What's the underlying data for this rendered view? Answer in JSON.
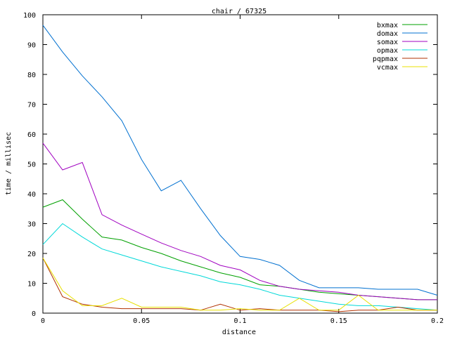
{
  "chart_data": {
    "type": "line",
    "title": "chair / 67325",
    "xlabel": "distance",
    "ylabel": "time / millisec",
    "xlim": [
      0,
      0.2
    ],
    "ylim": [
      0,
      100
    ],
    "xticks": [
      0,
      0.05,
      0.1,
      0.15,
      0.2
    ],
    "xtick_labels": [
      "0",
      "0.05",
      "0.1",
      "0.15",
      "0.2"
    ],
    "yticks": [
      0,
      10,
      20,
      30,
      40,
      50,
      60,
      70,
      80,
      90,
      100
    ],
    "ytick_labels": [
      "0",
      "10",
      "20",
      "30",
      "40",
      "50",
      "60",
      "70",
      "80",
      "90",
      "100"
    ],
    "grid": false,
    "legend": "top-right",
    "x": [
      0,
      0.01,
      0.02,
      0.03,
      0.04,
      0.05,
      0.06,
      0.07,
      0.08,
      0.09,
      0.1,
      0.11,
      0.12,
      0.13,
      0.14,
      0.15,
      0.16,
      0.17,
      0.18,
      0.19,
      0.2
    ],
    "series": [
      {
        "name": "bxmax",
        "color": "#00a000",
        "values": [
          35.5,
          38,
          31.5,
          25.5,
          24.5,
          22,
          20,
          17.5,
          15.5,
          13.5,
          12,
          9.5,
          9,
          8,
          7,
          6.5,
          6,
          5.5,
          5,
          4.5,
          4.5
        ]
      },
      {
        "name": "domax",
        "color": "#0070d0",
        "values": [
          96.5,
          87.5,
          79.5,
          72.5,
          64.5,
          51.5,
          41,
          44.5,
          35,
          26,
          19,
          18,
          16,
          11,
          8.5,
          8.5,
          8.5,
          8,
          8,
          8,
          6
        ]
      },
      {
        "name": "somax",
        "color": "#a000c0",
        "values": [
          57,
          48,
          50.5,
          33,
          29.5,
          26.5,
          23.5,
          21,
          19,
          16,
          14.5,
          11,
          9,
          8,
          7.5,
          7,
          6,
          5.5,
          5,
          4.5,
          4.5
        ]
      },
      {
        "name": "opmax",
        "color": "#00d8d8",
        "values": [
          23,
          30,
          25.5,
          21.5,
          19.5,
          17.5,
          15.5,
          14,
          12.5,
          10.5,
          9.5,
          8,
          6,
          5,
          4,
          3,
          2.5,
          2.5,
          2,
          1.5,
          1
        ]
      },
      {
        "name": "pqpmax",
        "color": "#b03000",
        "values": [
          18.5,
          5.5,
          3,
          2,
          1.5,
          1.5,
          1.5,
          1.5,
          1,
          3,
          1,
          1.5,
          1,
          1,
          1,
          0.5,
          1,
          1,
          2,
          1,
          1
        ]
      },
      {
        "name": "vcmax",
        "color": "#e8e000",
        "values": [
          18.5,
          7.5,
          2.5,
          2.5,
          5,
          2,
          2,
          2,
          1,
          1,
          1.5,
          1,
          1,
          5,
          1,
          1,
          6,
          1,
          1,
          1,
          1
        ]
      }
    ]
  }
}
